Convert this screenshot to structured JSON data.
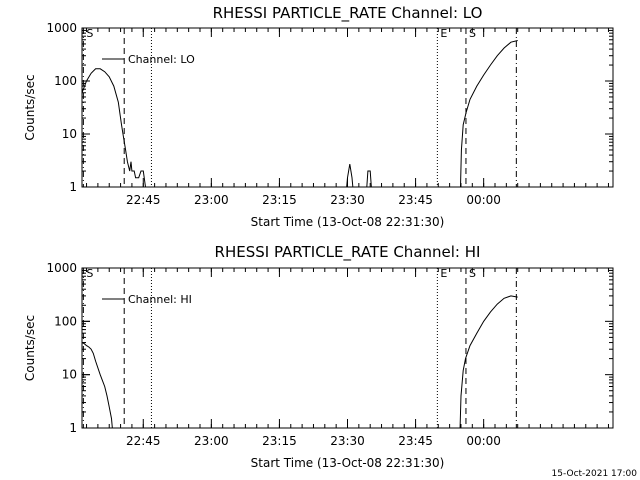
{
  "footer_timestamp": "15-Oct-2021 17:00",
  "chart_data": [
    {
      "type": "line",
      "title": "RHESSI PARTICLE_RATE Channel: LO",
      "xlabel": "Start Time (13-Oct-08 22:31:30)",
      "ylabel": "Counts/sec",
      "log_y": true,
      "ylim": [
        1,
        1000
      ],
      "xlim_minutes_after_start": [
        0,
        117
      ],
      "x_tick_labels": [
        "22:45",
        "23:00",
        "23:15",
        "23:30",
        "23:45",
        "00:00"
      ],
      "x_tick_minutes_after_start": [
        13.5,
        28.5,
        43.5,
        58.5,
        73.5,
        88.5
      ],
      "y_tick_labels": [
        "1",
        "10",
        "100",
        "1000"
      ],
      "y_tick_values": [
        1,
        10,
        100,
        1000
      ],
      "grid": false,
      "legend": {
        "position": "top-left",
        "entries": [
          "Channel: LO"
        ]
      },
      "markers": [
        {
          "label": "S",
          "minute": 0.3,
          "style": "dashdot"
        },
        {
          "label": "",
          "minute": 9.3,
          "style": "dashed"
        },
        {
          "label": "",
          "minute": 15.3,
          "style": "dotted"
        },
        {
          "label": "E",
          "minute": 78.3,
          "style": "dotted"
        },
        {
          "label": "S",
          "minute": 84.6,
          "style": "dashed"
        },
        {
          "label": "",
          "minute": 95.7,
          "style": "dashdot"
        }
      ],
      "series": [
        {
          "name": "Channel: LO",
          "segments": [
            [
              [
                0,
                60
              ],
              [
                1,
                100
              ],
              [
                2,
                140
              ],
              [
                3,
                170
              ],
              [
                4,
                170
              ],
              [
                5,
                150
              ],
              [
                6,
                120
              ],
              [
                7,
                80
              ],
              [
                8,
                40
              ],
              [
                8.7,
                15
              ],
              [
                9.2,
                8
              ],
              [
                9.6,
                5
              ],
              [
                10,
                3
              ],
              [
                10.5,
                2
              ],
              [
                10.8,
                3
              ],
              [
                11,
                2
              ],
              [
                11.5,
                2
              ],
              [
                11.8,
                1.5
              ],
              [
                12.5,
                1.5
              ],
              [
                13,
                2
              ],
              [
                13.5,
                2
              ],
              [
                14,
                1
              ],
              [
                14.2,
                0.5
              ]
            ],
            [
              [
                58,
                0.5
              ],
              [
                58.5,
                1.5
              ],
              [
                59,
                2.7
              ],
              [
                59.5,
                1.5
              ],
              [
                60,
                0.5
              ]
            ],
            [
              [
                62.5,
                0.5
              ],
              [
                63,
                2
              ],
              [
                63.5,
                2
              ],
              [
                64,
                0.5
              ]
            ],
            [
              [
                83.3,
                0.5
              ],
              [
                83.6,
                5
              ],
              [
                84,
                15
              ],
              [
                84.6,
                25
              ],
              [
                85.5,
                45
              ],
              [
                87,
                80
              ],
              [
                88.5,
                130
              ],
              [
                90,
                200
              ],
              [
                91.5,
                300
              ],
              [
                93,
                420
              ],
              [
                94.5,
                540
              ],
              [
                96,
                580
              ]
            ]
          ]
        }
      ]
    },
    {
      "type": "line",
      "title": "RHESSI PARTICLE_RATE Channel: HI",
      "xlabel": "Start Time (13-Oct-08 22:31:30)",
      "ylabel": "Counts/sec",
      "log_y": true,
      "ylim": [
        1,
        1000
      ],
      "xlim_minutes_after_start": [
        0,
        117
      ],
      "x_tick_labels": [
        "22:45",
        "23:00",
        "23:15",
        "23:30",
        "23:45",
        "00:00"
      ],
      "x_tick_minutes_after_start": [
        13.5,
        28.5,
        43.5,
        58.5,
        73.5,
        88.5
      ],
      "y_tick_labels": [
        "1",
        "10",
        "100",
        "1000"
      ],
      "y_tick_values": [
        1,
        10,
        100,
        1000
      ],
      "grid": false,
      "legend": {
        "position": "top-left",
        "entries": [
          "Channel: HI"
        ]
      },
      "markers": [
        {
          "label": "S",
          "minute": 0.3,
          "style": "dashdot"
        },
        {
          "label": "",
          "minute": 9.3,
          "style": "dashed"
        },
        {
          "label": "",
          "minute": 15.3,
          "style": "dotted"
        },
        {
          "label": "E",
          "minute": 78.3,
          "style": "dotted"
        },
        {
          "label": "S",
          "minute": 84.6,
          "style": "dashed"
        },
        {
          "label": "",
          "minute": 95.7,
          "style": "dashdot"
        }
      ],
      "series": [
        {
          "name": "Channel: HI",
          "segments": [
            [
              [
                0,
                40
              ],
              [
                0.5,
                38
              ],
              [
                1,
                35
              ],
              [
                1.5,
                33
              ],
              [
                2,
                30
              ],
              [
                2.5,
                25
              ],
              [
                3,
                18
              ],
              [
                4,
                10
              ],
              [
                5,
                6
              ],
              [
                5.5,
                4
              ],
              [
                6,
                2.5
              ],
              [
                6.5,
                1.5
              ],
              [
                7,
                0.5
              ]
            ],
            [
              [
                83.2,
                0.5
              ],
              [
                83.5,
                4
              ],
              [
                84,
                12
              ],
              [
                84.5,
                20
              ],
              [
                85.5,
                35
              ],
              [
                87,
                60
              ],
              [
                88.5,
                100
              ],
              [
                90,
                150
              ],
              [
                91.5,
                210
              ],
              [
                93,
                270
              ],
              [
                94.5,
                300
              ],
              [
                96,
                285
              ]
            ]
          ]
        }
      ]
    }
  ]
}
